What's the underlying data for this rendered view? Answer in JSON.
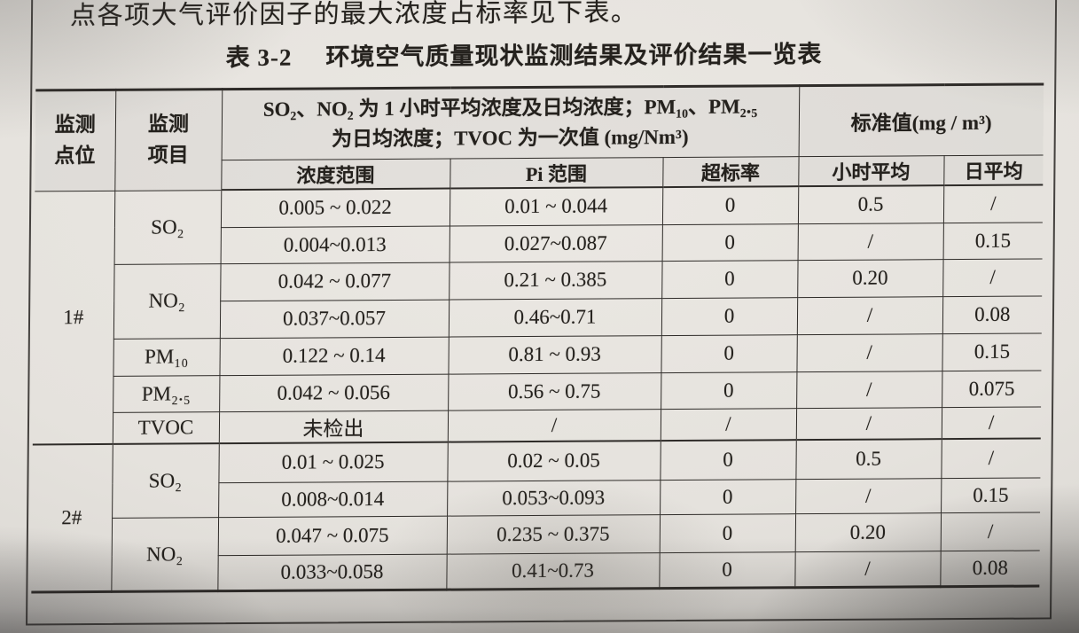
{
  "colors": {
    "paper": "#e5e2dd",
    "ink": "#24211d",
    "line": "#2e2b28"
  },
  "page": {
    "intro_text": "点各项大气评价因子的最大浓度占标率见下表。",
    "table_caption_label": "表 3-2",
    "table_caption_title": "环境空气质量现状监测结果及评价结果一览表"
  },
  "table": {
    "headers": {
      "col_site": "监测\n点位",
      "col_item": "监测\n项目",
      "group_measure": "SO₂、NO₂ 为 1 小时平均浓度及日均浓度；PM₁₀、PM₂.₅\n为日均浓度；TVOC 为一次值 (mg/Nm³)",
      "group_standard": "标准值(mg / m³)",
      "sub_conc_range": "浓度范围",
      "sub_pi_range": "Pi 范围",
      "sub_exceed_rate": "超标率",
      "sub_hourly": "小时平均",
      "sub_daily": "日平均"
    },
    "groups": [
      {
        "site": "1#",
        "items": [
          {
            "name": "SO₂",
            "rows": [
              [
                "0.005 ~ 0.022",
                "0.01 ~ 0.044",
                "0",
                "0.5",
                "/"
              ],
              [
                "0.004~0.013",
                "0.027~0.087",
                "0",
                "/",
                "0.15"
              ]
            ]
          },
          {
            "name": "NO₂",
            "rows": [
              [
                "0.042 ~ 0.077",
                "0.21 ~ 0.385",
                "0",
                "0.20",
                "/"
              ],
              [
                "0.037~0.057",
                "0.46~0.71",
                "0",
                "/",
                "0.08"
              ]
            ]
          },
          {
            "name": "PM₁₀",
            "rows": [
              [
                "0.122 ~ 0.14",
                "0.81 ~ 0.93",
                "0",
                "/",
                "0.15"
              ]
            ]
          },
          {
            "name": "PM₂.₅",
            "rows": [
              [
                "0.042 ~ 0.056",
                "0.56 ~ 0.75",
                "0",
                "/",
                "0.075"
              ]
            ]
          },
          {
            "name": "TVOC",
            "rows": [
              [
                "未检出",
                "/",
                "/",
                "/",
                "/"
              ]
            ]
          }
        ]
      },
      {
        "site": "2#",
        "items": [
          {
            "name": "SO₂",
            "rows": [
              [
                "0.01 ~ 0.025",
                "0.02 ~ 0.05",
                "0",
                "0.5",
                "/"
              ],
              [
                "0.008~0.014",
                "0.053~0.093",
                "0",
                "/",
                "0.15"
              ]
            ]
          },
          {
            "name": "NO₂",
            "rows": [
              [
                "0.047 ~ 0.075",
                "0.235 ~ 0.375",
                "0",
                "0.20",
                "/"
              ],
              [
                "0.033~0.058",
                "0.41~0.73",
                "0",
                "/",
                "0.08"
              ]
            ]
          }
        ]
      }
    ]
  }
}
